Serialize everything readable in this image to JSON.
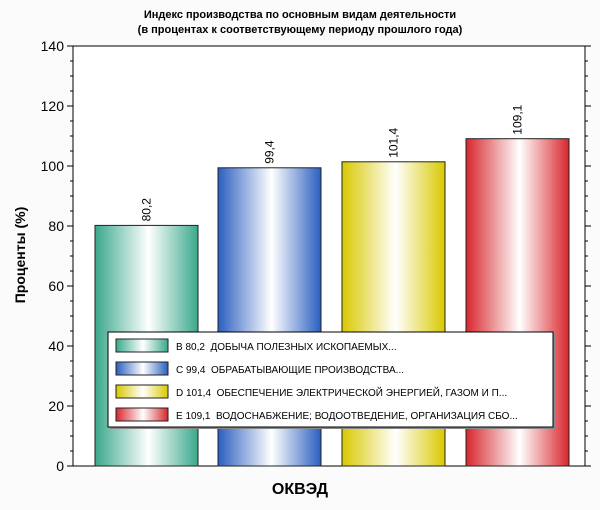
{
  "chart_data": {
    "type": "bar",
    "title": "Индекс производства по основным видам деятельности",
    "subtitle": "(в процентах к соответствующему периоду прошлого года)",
    "xlabel": "ОКВЭД",
    "ylabel": "Проценты (%)",
    "ylim": [
      0,
      140
    ],
    "yticks": [
      0,
      20,
      40,
      60,
      80,
      100,
      120,
      140
    ],
    "grid": false,
    "legend_position": "bottom-center inside plot",
    "categories": [
      "B 80,2  ДОБЫЧА ПОЛЕЗНЫХ ИСКОПАЕМЫХ...",
      "C 99,4  ОБРАБАТЫВАЮЩИЕ ПРОИЗВОДСТВА...",
      "D 101,4  ОБЕСПЕЧЕНИЕ ЭЛЕКТРИЧЕСКОЙ ЭНЕРГИЕЙ, ГАЗОМ И П...",
      "E 109,1  ВОДОСНАБЖЕНИЕ; ВОДООТВЕДЕНИЕ, ОРГАНИЗАЦИЯ СБО..."
    ],
    "values": [
      80.2,
      99.4,
      101.4,
      109.1
    ],
    "value_labels": [
      "80,2",
      "99,4",
      "101,4",
      "109,1"
    ],
    "colors": [
      "#3aa88c",
      "#2a5fc0",
      "#d9c800",
      "#d8262c"
    ]
  }
}
